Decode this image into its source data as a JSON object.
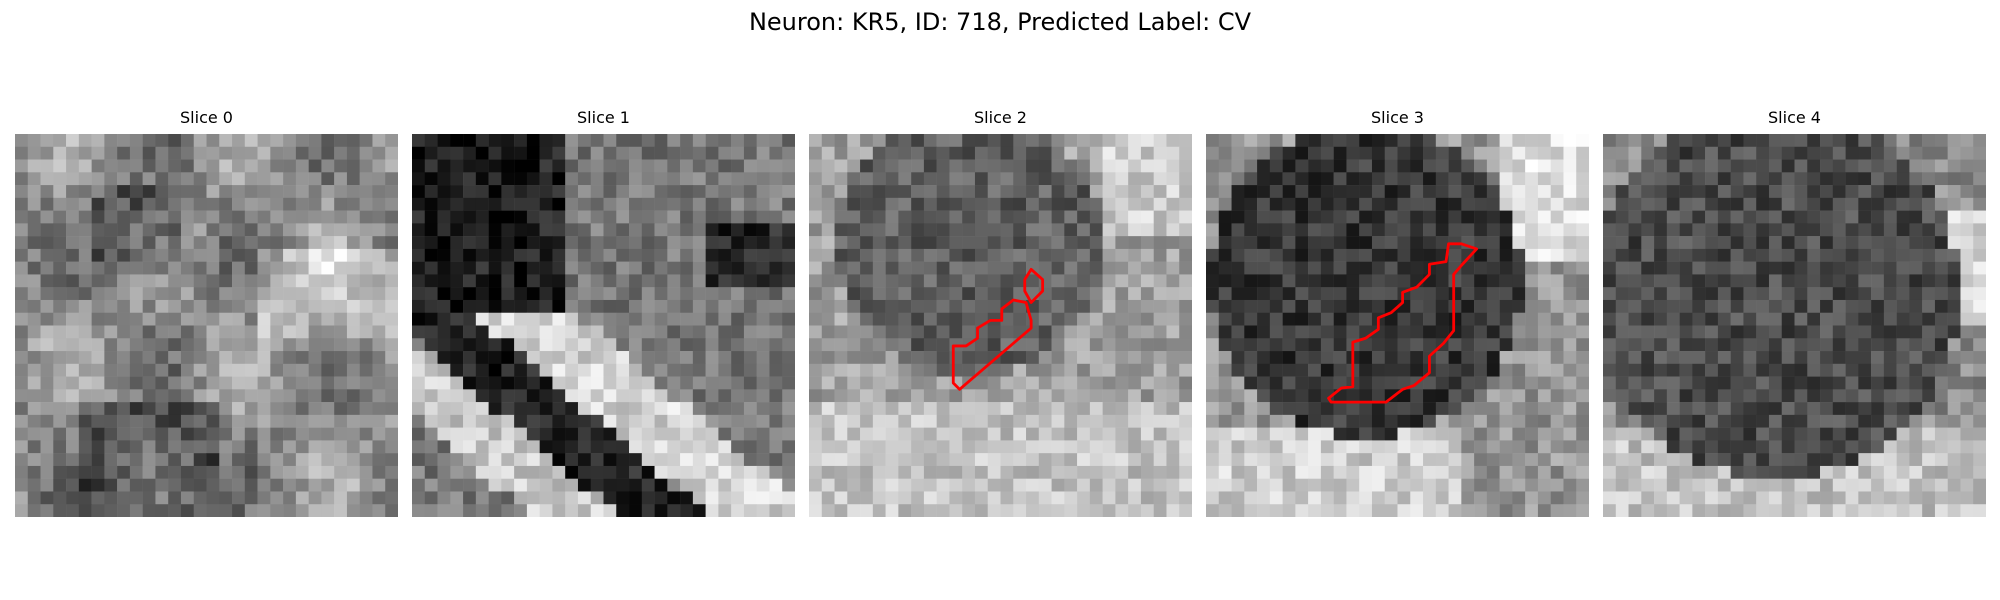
{
  "figure": {
    "title": "Neuron: KR5, ID: 718, Predicted Label: CV"
  },
  "panels": [
    {
      "title": "Slice 0",
      "tone": "mid",
      "has_outline": false
    },
    {
      "title": "Slice 1",
      "tone": "dark-bands",
      "has_outline": false
    },
    {
      "title": "Slice 2",
      "tone": "round-dark-top",
      "has_outline": true
    },
    {
      "title": "Slice 3",
      "tone": "round-dark-center",
      "has_outline": true
    },
    {
      "title": "Slice 4",
      "tone": "round-dark-full",
      "has_outline": false
    }
  ],
  "colors": {
    "outline": "#ff0000",
    "background": "#ffffff"
  }
}
